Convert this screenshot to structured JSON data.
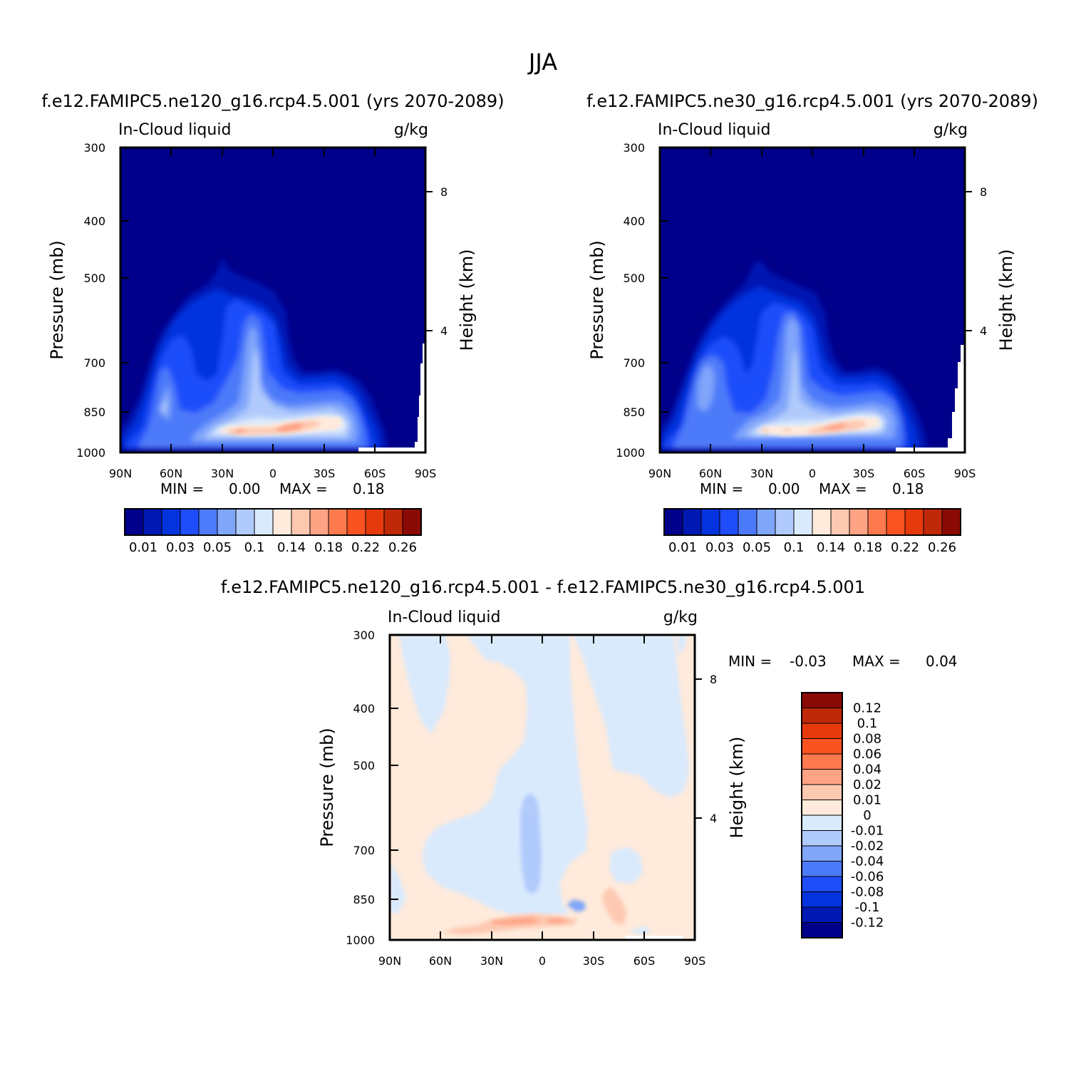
{
  "figure": {
    "title": "JJA"
  },
  "colors": {
    "abs_palette": [
      "#00008a",
      "#0019b2",
      "#0433de",
      "#1f4dfa",
      "#4d7af9",
      "#80a6fa",
      "#b0cafc",
      "#d9eafd",
      "#ffeadb",
      "#fec9b1",
      "#fea384",
      "#fd7a4f",
      "#fb5221",
      "#e63a0c",
      "#bf2809",
      "#8a0b05"
    ],
    "diff_palette": [
      "#00008a",
      "#0019b2",
      "#0433de",
      "#1f4dfa",
      "#4d7af9",
      "#80a6fa",
      "#b0cafc",
      "#d9eafd",
      "#ffeadb",
      "#fec9b1",
      "#fea384",
      "#fd7a4f",
      "#fb5221",
      "#e63a0c",
      "#bf2809",
      "#8a0b05"
    ]
  },
  "chart_data": [
    {
      "type": "heatmap",
      "title": "f.e12.FAMIPC5.ne120_g16.rcp4.5.001 (yrs 2070-2089)",
      "subtitle_left": "In-Cloud liquid",
      "subtitle_right": "g/kg",
      "ylabel": "Pressure (mb)",
      "ylabel_right": "Height (km)",
      "x_ticks": [
        "90N",
        "60N",
        "30N",
        "0",
        "30S",
        "60S",
        "90S"
      ],
      "x_range": [
        90,
        -90
      ],
      "y_ticks": [
        "300",
        "400",
        "500",
        "700",
        "850",
        "1000"
      ],
      "y_range": [
        300,
        1000
      ],
      "y_scale": "log",
      "height_ticks": [
        "8",
        "4"
      ],
      "min_label": "MIN =",
      "min_value": "0.00",
      "max_label": "MAX =",
      "max_value": "0.18",
      "colorbar_labels": [
        "0.01",
        "0.03",
        "0.05",
        "0.1",
        "0.14",
        "0.18",
        "0.22",
        "0.26"
      ],
      "colorbar_orientation": "horizontal"
    },
    {
      "type": "heatmap",
      "title": "f.e12.FAMIPC5.ne30_g16.rcp4.5.001 (yrs 2070-2089)",
      "subtitle_left": "In-Cloud liquid",
      "subtitle_right": "g/kg",
      "ylabel": "Pressure (mb)",
      "ylabel_right": "Height (km)",
      "x_ticks": [
        "90N",
        "60N",
        "30N",
        "0",
        "30S",
        "60S",
        "90S"
      ],
      "x_range": [
        90,
        -90
      ],
      "y_ticks": [
        "300",
        "400",
        "500",
        "700",
        "850",
        "1000"
      ],
      "y_range": [
        300,
        1000
      ],
      "y_scale": "log",
      "height_ticks": [
        "8",
        "4"
      ],
      "min_label": "MIN =",
      "min_value": "0.00",
      "max_label": "MAX =",
      "max_value": "0.18",
      "colorbar_labels": [
        "0.01",
        "0.03",
        "0.05",
        "0.1",
        "0.14",
        "0.18",
        "0.22",
        "0.26"
      ],
      "colorbar_orientation": "horizontal"
    },
    {
      "type": "heatmap",
      "title": "f.e12.FAMIPC5.ne120_g16.rcp4.5.001 - f.e12.FAMIPC5.ne30_g16.rcp4.5.001",
      "subtitle_left": "In-Cloud liquid",
      "subtitle_right": "g/kg",
      "ylabel": "Pressure (mb)",
      "ylabel_right": "Height (km)",
      "x_ticks": [
        "90N",
        "60N",
        "30N",
        "0",
        "30S",
        "60S",
        "90S"
      ],
      "x_range": [
        90,
        -90
      ],
      "y_ticks": [
        "300",
        "400",
        "500",
        "700",
        "850",
        "1000"
      ],
      "y_range": [
        300,
        1000
      ],
      "y_scale": "log",
      "height_ticks": [
        "8",
        "4"
      ],
      "min_label": "MIN =",
      "min_value": "-0.03",
      "max_label": "MAX =",
      "max_value": "0.04",
      "colorbar_labels": [
        "0.12",
        "0.1",
        "0.08",
        "0.06",
        "0.04",
        "0.02",
        "0.01",
        "0",
        "-0.01",
        "-0.02",
        "-0.04",
        "-0.06",
        "-0.08",
        "-0.1",
        "-0.12"
      ],
      "colorbar_orientation": "vertical"
    }
  ]
}
